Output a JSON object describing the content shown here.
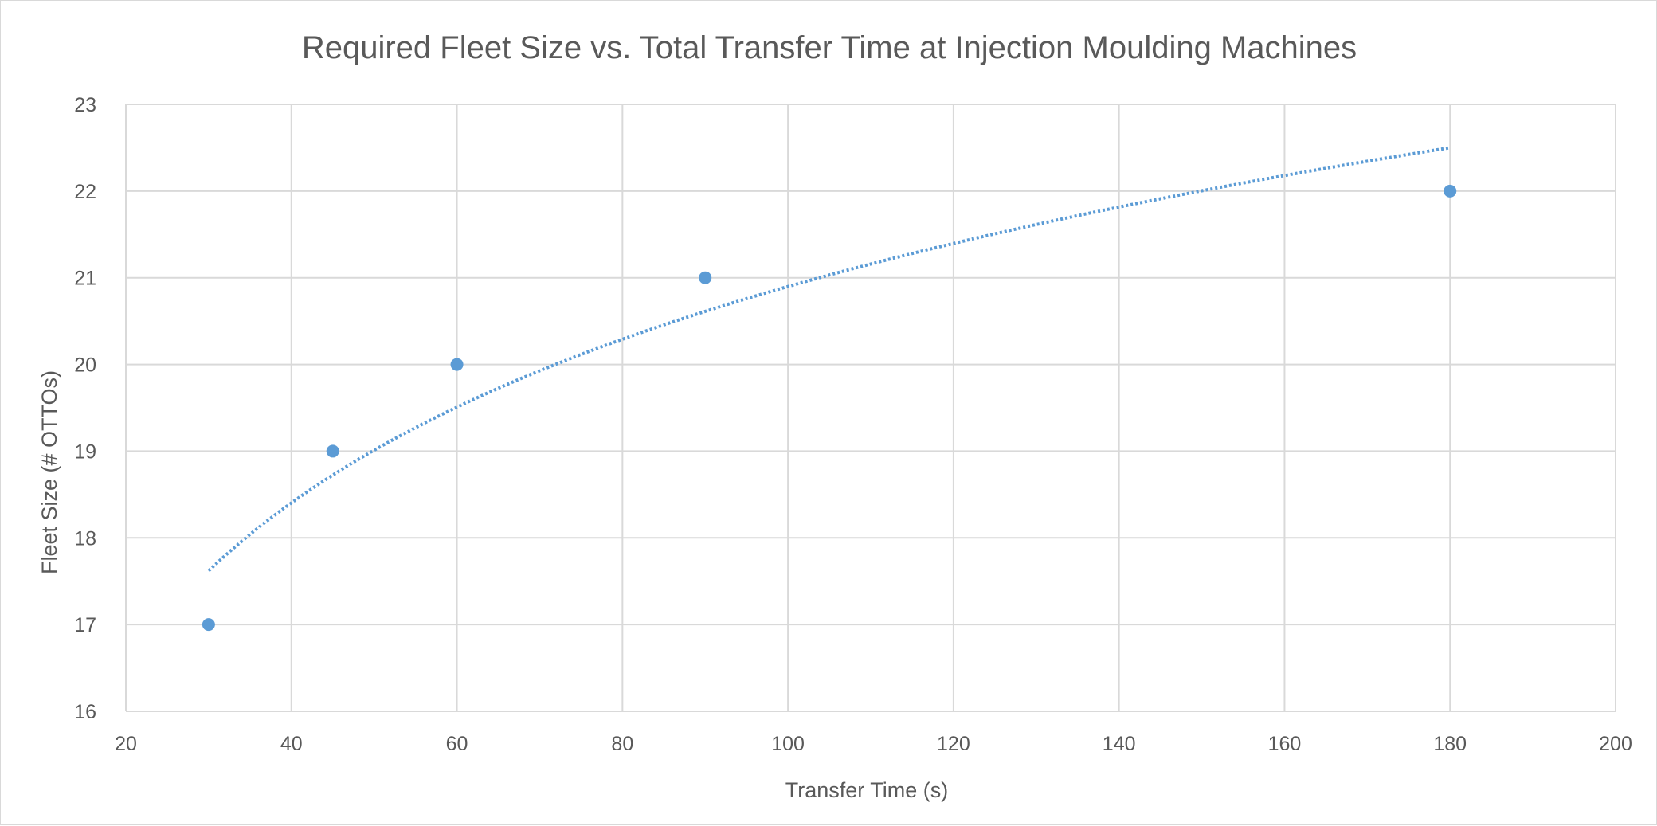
{
  "chart_data": {
    "type": "scatter",
    "title": "Required Fleet Size vs. Total Transfer Time at Injection Moulding Machines",
    "xlabel": "Transfer Time (s)",
    "ylabel": "Fleet Size (# OTTOs)",
    "xlim": [
      20,
      200
    ],
    "ylim": [
      16,
      23
    ],
    "x_ticks": [
      "20",
      "40",
      "60",
      "80",
      "100",
      "120",
      "140",
      "160",
      "180",
      "200"
    ],
    "y_ticks": [
      "16",
      "17",
      "18",
      "19",
      "20",
      "21",
      "22",
      "23"
    ],
    "grid": true,
    "legend": "none",
    "series": [
      {
        "points": [
          {
            "x": 30,
            "y": 17
          },
          {
            "x": 45,
            "y": 19
          },
          {
            "x": 60,
            "y": 20
          },
          {
            "x": 90,
            "y": 21
          },
          {
            "x": 180,
            "y": 22
          }
        ],
        "color": "#5b9bd5",
        "marker": "circle"
      }
    ],
    "trendline": {
      "type": "logarithmic",
      "style": "dotted",
      "color": "#5b9bd5",
      "x_range": [
        30,
        180
      ],
      "y_at_x_min": 17.62,
      "y_at_x_max": 22.5
    }
  }
}
